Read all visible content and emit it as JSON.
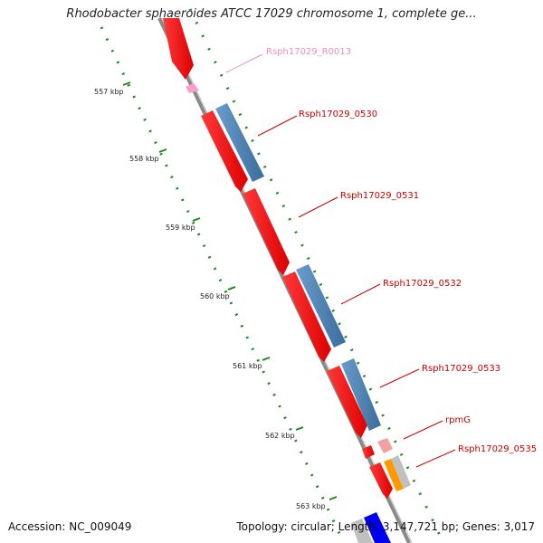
{
  "title": "Rhodobacter sphaeroides ATCC 17029 chromosome 1, complete ge...",
  "footer": {
    "accession": "Accession: NC_009049",
    "summary": "Topology: circular; Length: 3,147,721 bp; Genes: 3,017"
  },
  "ticks": [
    "557 kbp",
    "558 kbp",
    "559 kbp",
    "560 kbp",
    "561 kbp",
    "562 kbp",
    "563 kbp"
  ],
  "gene_labels": [
    {
      "name": "Rsph17029_R0013",
      "color": "#f08cc0"
    },
    {
      "name": "Rsph17029_0530",
      "color": "#cc0000"
    },
    {
      "name": "Rsph17029_0531",
      "color": "#cc0000"
    },
    {
      "name": "Rsph17029_0532",
      "color": "#cc0000"
    },
    {
      "name": "Rsph17029_0533",
      "color": "#cc0000"
    },
    {
      "name": "rpmG",
      "color": "#cc0000"
    },
    {
      "name": "Rsph17029_0535",
      "color": "#cc0000"
    }
  ],
  "colors": {
    "cds": "#ff0000",
    "strand_bar": "#4a7fb0",
    "rna": "#f4a0c8",
    "backbone": "#888888",
    "tick_dots": "#1a8a1a",
    "orange_feature": "#ff9900",
    "blue_feature": "#0000ee"
  }
}
